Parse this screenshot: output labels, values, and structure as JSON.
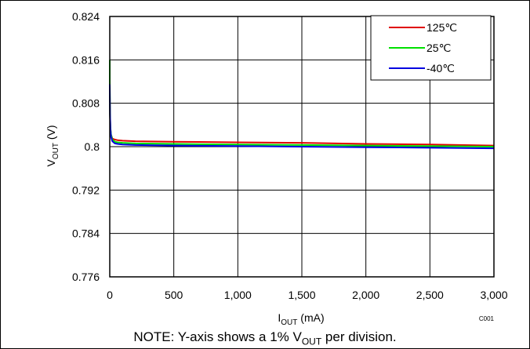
{
  "chart_data": {
    "type": "line",
    "xlabel_main": "I",
    "xlabel_sub": "OUT",
    "xlabel_unit": " (mA)",
    "ylabel_main": "V",
    "ylabel_sub": "OUT",
    "ylabel_unit": " (V)",
    "xlim": [
      0,
      3000
    ],
    "ylim": [
      0.776,
      0.824
    ],
    "x_ticks": [
      0,
      500,
      1000,
      1500,
      2000,
      2500,
      3000
    ],
    "x_tick_labels": [
      "0",
      "500",
      "1,000",
      "1,500",
      "2,000",
      "2,500",
      "3,000"
    ],
    "y_ticks": [
      0.776,
      0.784,
      0.792,
      0.8,
      0.808,
      0.816,
      0.824
    ],
    "y_tick_labels": [
      "0.776",
      "0.784",
      "0.792",
      "0.8",
      "0.808",
      "0.816",
      "0.824"
    ],
    "grid": true,
    "legend_position": "top-right",
    "corner_label": "C001",
    "series": [
      {
        "name": "125℃",
        "color": "#e00000",
        "x": [
          0,
          2,
          5,
          10,
          20,
          40,
          60,
          100,
          200,
          500,
          1000,
          1500,
          2000,
          2500,
          3000
        ],
        "y": [
          0.8095,
          0.806,
          0.8035,
          0.8022,
          0.8015,
          0.8013,
          0.8012,
          0.8011,
          0.801,
          0.8009,
          0.8008,
          0.8007,
          0.8005,
          0.8004,
          0.8002
        ]
      },
      {
        "name": "25℃",
        "color": "#00e000",
        "x": [
          0,
          0,
          2,
          5,
          10,
          20,
          40,
          60,
          100,
          200,
          500,
          1000,
          1500,
          2000,
          2500,
          3000
        ],
        "y": [
          0.816,
          0.812,
          0.806,
          0.8035,
          0.8022,
          0.8013,
          0.8009,
          0.8008,
          0.8007,
          0.8006,
          0.8005,
          0.8004,
          0.8003,
          0.8002,
          0.8001,
          0.8
        ]
      },
      {
        "name": "-40℃",
        "color": "#0000e0",
        "x": [
          0,
          2,
          5,
          10,
          20,
          40,
          60,
          100,
          200,
          500,
          1000,
          1500,
          2000,
          2500,
          3000
        ],
        "y": [
          0.8115,
          0.806,
          0.8032,
          0.8018,
          0.801,
          0.8006,
          0.8005,
          0.8004,
          0.8003,
          0.8002,
          0.8001,
          0.8,
          0.7999,
          0.7998,
          0.7997
        ]
      }
    ]
  },
  "note": {
    "prefix": "NOTE: Y-axis shows a 1% V",
    "sub": "OUT",
    "suffix": " per division."
  }
}
